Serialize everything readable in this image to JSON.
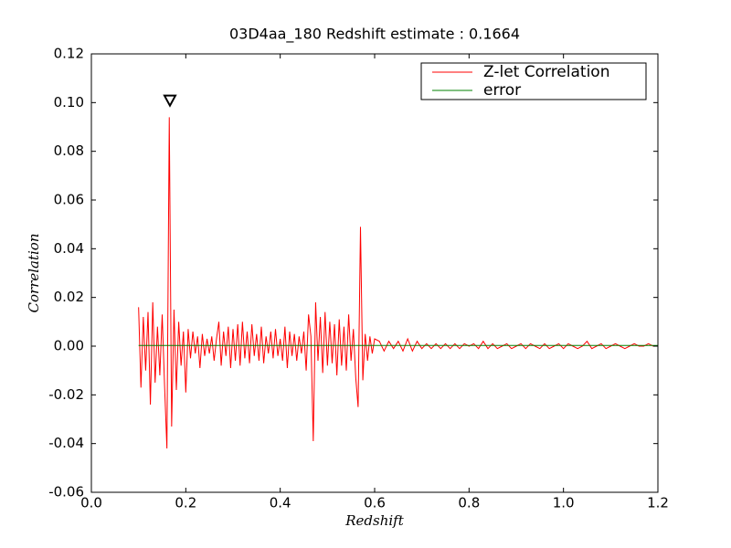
{
  "chart_data": {
    "type": "line",
    "title": "03D4aa_180 Redshift estimate : 0.1664",
    "x_label": "Redshift",
    "y_label": "Correlation",
    "xlim": [
      0,
      1.2
    ],
    "ylim": [
      -0.06,
      0.12
    ],
    "xticks": [
      {
        "value": 0,
        "label": "0.0"
      },
      0.2,
      0.4,
      0.6,
      0.8,
      {
        "value": 1,
        "label": "1.0"
      },
      1.2
    ],
    "yticks": [
      {
        "value": -0.06,
        "label": "-0.06"
      },
      {
        "value": -0.04,
        "label": "-0.04"
      },
      {
        "value": -0.02,
        "label": "-0.02"
      },
      {
        "value": 0,
        "label": "0.00"
      },
      0.02,
      0.04,
      0.06,
      0.08,
      {
        "value": 0.1,
        "label": "0.10"
      },
      0.12
    ],
    "legend": "upper right",
    "peak_marker": {
      "x": 0.1664,
      "y": 0.101
    },
    "series": [
      {
        "name": "Z-let Correlation",
        "color": "#ff0000",
        "x": [
          0.1,
          0.105,
          0.11,
          0.115,
          0.12,
          0.125,
          0.13,
          0.135,
          0.14,
          0.145,
          0.15,
          0.155,
          0.16,
          0.165,
          0.17,
          0.175,
          0.18,
          0.185,
          0.19,
          0.195,
          0.2,
          0.205,
          0.21,
          0.215,
          0.22,
          0.225,
          0.23,
          0.235,
          0.24,
          0.245,
          0.25,
          0.255,
          0.26,
          0.265,
          0.27,
          0.275,
          0.28,
          0.285,
          0.29,
          0.295,
          0.3,
          0.305,
          0.31,
          0.315,
          0.32,
          0.325,
          0.33,
          0.335,
          0.34,
          0.345,
          0.35,
          0.355,
          0.36,
          0.365,
          0.37,
          0.375,
          0.38,
          0.385,
          0.39,
          0.395,
          0.4,
          0.405,
          0.41,
          0.415,
          0.42,
          0.425,
          0.43,
          0.435,
          0.44,
          0.445,
          0.45,
          0.455,
          0.46,
          0.465,
          0.47,
          0.475,
          0.48,
          0.485,
          0.49,
          0.495,
          0.5,
          0.505,
          0.51,
          0.515,
          0.52,
          0.525,
          0.53,
          0.535,
          0.54,
          0.545,
          0.55,
          0.555,
          0.56,
          0.565,
          0.57,
          0.575,
          0.58,
          0.585,
          0.59,
          0.595,
          0.6,
          0.61,
          0.62,
          0.63,
          0.64,
          0.65,
          0.66,
          0.67,
          0.68,
          0.69,
          0.7,
          0.71,
          0.72,
          0.73,
          0.74,
          0.75,
          0.76,
          0.77,
          0.78,
          0.79,
          0.8,
          0.81,
          0.82,
          0.83,
          0.84,
          0.85,
          0.86,
          0.87,
          0.88,
          0.89,
          0.9,
          0.91,
          0.92,
          0.93,
          0.94,
          0.95,
          0.96,
          0.97,
          0.98,
          0.99,
          1.0,
          1.01,
          1.02,
          1.03,
          1.04,
          1.05,
          1.06,
          1.07,
          1.08,
          1.09,
          1.1,
          1.11,
          1.12,
          1.13,
          1.14,
          1.15,
          1.16,
          1.17,
          1.18,
          1.19,
          1.2
        ],
        "values": [
          0.016,
          -0.017,
          0.012,
          -0.01,
          0.014,
          -0.024,
          0.018,
          -0.015,
          0.008,
          -0.012,
          0.013,
          -0.016,
          -0.042,
          0.094,
          -0.033,
          0.015,
          -0.018,
          0.01,
          -0.008,
          0.006,
          -0.019,
          0.007,
          -0.005,
          0.006,
          -0.003,
          0.004,
          -0.009,
          0.005,
          -0.004,
          0.003,
          -0.003,
          0.004,
          -0.006,
          0.003,
          0.01,
          -0.008,
          0.006,
          -0.004,
          0.008,
          -0.009,
          0.007,
          -0.006,
          0.009,
          -0.008,
          0.01,
          -0.005,
          0.006,
          -0.007,
          0.009,
          -0.004,
          0.005,
          -0.006,
          0.008,
          -0.007,
          0.004,
          -0.003,
          0.006,
          -0.005,
          0.007,
          -0.004,
          0.003,
          -0.006,
          0.008,
          -0.009,
          0.006,
          -0.004,
          0.005,
          -0.006,
          0.004,
          -0.003,
          0.006,
          -0.01,
          0.013,
          0.004,
          -0.039,
          0.018,
          -0.006,
          0.012,
          -0.011,
          0.014,
          -0.008,
          0.01,
          -0.007,
          0.009,
          -0.012,
          0.011,
          -0.008,
          0.008,
          -0.01,
          0.013,
          -0.006,
          0.007,
          -0.013,
          -0.025,
          0.049,
          -0.014,
          0.005,
          -0.006,
          0.004,
          -0.003,
          0.003,
          0.002,
          -0.002,
          0.002,
          -0.001,
          0.002,
          -0.002,
          0.003,
          -0.002,
          0.002,
          -0.001,
          0.001,
          -0.001,
          0.001,
          -0.001,
          0.001,
          -0.001,
          0.001,
          -0.001,
          0.001,
          0.0,
          0.001,
          -0.001,
          0.002,
          -0.001,
          0.001,
          -0.001,
          0.0,
          0.001,
          -0.001,
          0.0,
          0.001,
          -0.001,
          0.001,
          0.0,
          -0.001,
          0.001,
          -0.001,
          0.0,
          0.001,
          -0.001,
          0.001,
          0.0,
          -0.001,
          0.0,
          0.002,
          -0.001,
          0.0,
          0.001,
          -0.001,
          0.0,
          0.001,
          0.0,
          -0.001,
          0.0,
          0.001,
          0.0,
          0.0,
          0.001,
          0.0,
          0.0
        ]
      },
      {
        "name": "error",
        "color": "#008000",
        "x": [
          0.1,
          1.2
        ],
        "values": [
          0.0003,
          0.0003
        ]
      }
    ]
  }
}
